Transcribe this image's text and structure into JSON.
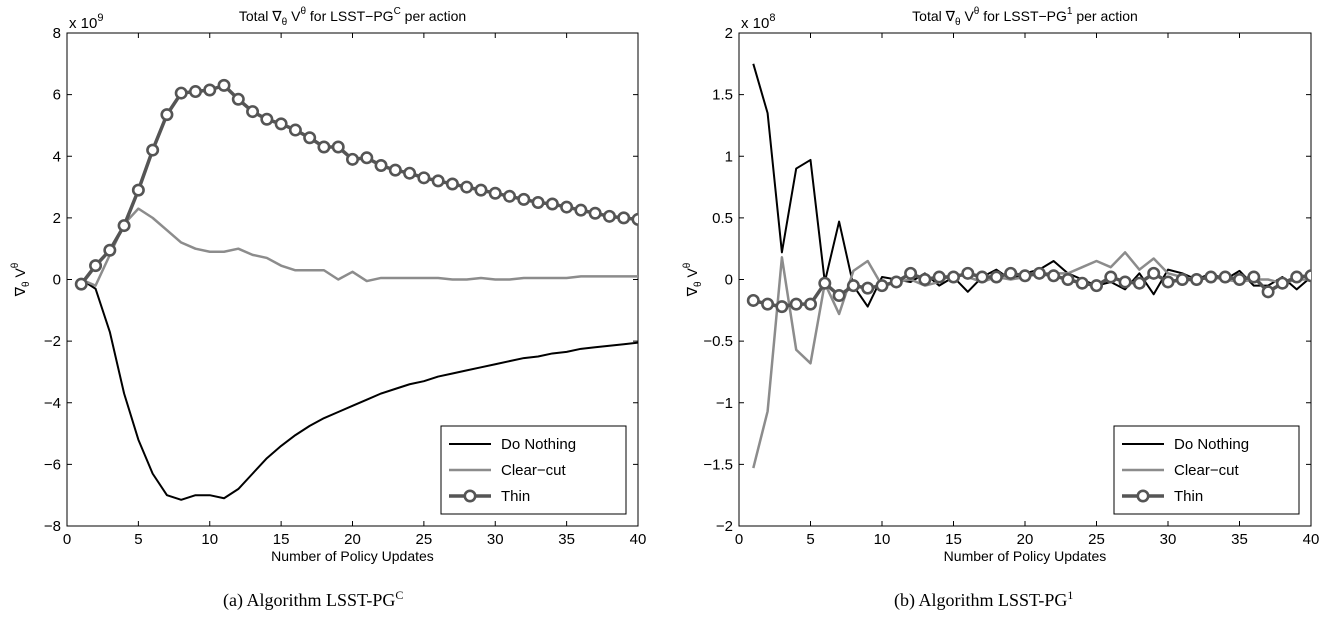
{
  "captions": [
    {
      "main": "(a) Algorithm LSST-PG",
      "sup": "C"
    },
    {
      "main": "(b) Algorithm LSST-PG",
      "sup": "1"
    }
  ],
  "chart_data": [
    {
      "type": "line",
      "title": {
        "pre": "Total ",
        "grad": "∇",
        "grad_sub": "θ",
        "v": " V",
        "v_sup": "θ",
        "mid": " for LSST−PG",
        "alg_sup": "C",
        "post": " per action"
      },
      "xlabel": "Number of Policy Updates",
      "ylabel": {
        "grad": "∇",
        "grad_sub": "θ",
        "v": " V",
        "v_sup": "θ"
      },
      "exponent": {
        "base": "x 10",
        "power": "9"
      },
      "xlim": [
        0,
        40
      ],
      "ylim": [
        -8,
        8
      ],
      "xticks": [
        "0",
        "5",
        "10",
        "15",
        "20",
        "25",
        "30",
        "35",
        "40"
      ],
      "yticks": [
        "−8",
        "−6",
        "−4",
        "−2",
        "0",
        "2",
        "4",
        "6",
        "8"
      ],
      "legend_position": "bottom-right",
      "x": [
        1,
        2,
        3,
        4,
        5,
        6,
        7,
        8,
        9,
        10,
        11,
        12,
        13,
        14,
        15,
        16,
        17,
        18,
        19,
        20,
        21,
        22,
        23,
        24,
        25,
        26,
        27,
        28,
        29,
        30,
        31,
        32,
        33,
        34,
        35,
        36,
        37,
        38,
        39,
        40
      ],
      "series": [
        {
          "name": "Do Nothing",
          "color": "#000000",
          "marker": "none",
          "values": [
            0,
            -0.3,
            -1.7,
            -3.7,
            -5.2,
            -6.3,
            -7.0,
            -7.15,
            -7.0,
            -7.0,
            -7.1,
            -6.8,
            -6.3,
            -5.8,
            -5.4,
            -5.05,
            -4.75,
            -4.5,
            -4.3,
            -4.1,
            -3.9,
            -3.7,
            -3.55,
            -3.4,
            -3.3,
            -3.15,
            -3.05,
            -2.95,
            -2.85,
            -2.75,
            -2.65,
            -2.55,
            -2.5,
            -2.4,
            -2.35,
            -2.25,
            -2.2,
            -2.15,
            -2.1,
            -2.05
          ]
        },
        {
          "name": "Clear−cut",
          "color": "#8c8c8c",
          "marker": "none",
          "values": [
            0,
            -0.2,
            0.8,
            1.8,
            2.3,
            2.0,
            1.6,
            1.2,
            1.0,
            0.9,
            0.9,
            1.0,
            0.8,
            0.7,
            0.45,
            0.3,
            0.3,
            0.3,
            0.0,
            0.25,
            -0.05,
            0.05,
            0.05,
            0.05,
            0.05,
            0.05,
            0.0,
            0.0,
            0.05,
            0.0,
            0.0,
            0.05,
            0.05,
            0.05,
            0.05,
            0.1,
            0.1,
            0.1,
            0.1,
            0.1
          ]
        },
        {
          "name": "Thin",
          "color": "#555555",
          "marker": "circle",
          "values": [
            -0.15,
            0.45,
            0.95,
            1.75,
            2.9,
            4.2,
            5.35,
            6.05,
            6.1,
            6.15,
            6.3,
            5.85,
            5.45,
            5.2,
            5.05,
            4.85,
            4.6,
            4.3,
            4.3,
            3.9,
            3.95,
            3.7,
            3.55,
            3.45,
            3.3,
            3.2,
            3.1,
            3.0,
            2.9,
            2.8,
            2.7,
            2.6,
            2.5,
            2.45,
            2.35,
            2.25,
            2.15,
            2.05,
            2.0,
            1.95
          ]
        }
      ]
    },
    {
      "type": "line",
      "title": {
        "pre": "Total ",
        "grad": "∇",
        "grad_sub": "θ",
        "v": " V",
        "v_sup": "θ",
        "mid": " for LSST−PG",
        "alg_sup": "1",
        "post": " per action"
      },
      "xlabel": "Number of Policy Updates",
      "ylabel": {
        "grad": "∇",
        "grad_sub": "θ",
        "v": " V",
        "v_sup": "θ"
      },
      "exponent": {
        "base": "x 10",
        "power": "8"
      },
      "xlim": [
        0,
        40
      ],
      "ylim": [
        -2,
        2
      ],
      "xticks": [
        "0",
        "5",
        "10",
        "15",
        "20",
        "25",
        "30",
        "35",
        "40"
      ],
      "yticks": [
        "−2",
        "−1.5",
        "−1",
        "−0.5",
        "0",
        "0.5",
        "1",
        "1.5",
        "2"
      ],
      "legend_position": "bottom-right",
      "x": [
        1,
        2,
        3,
        4,
        5,
        6,
        7,
        8,
        9,
        10,
        11,
        12,
        13,
        14,
        15,
        16,
        17,
        18,
        19,
        20,
        21,
        22,
        23,
        24,
        25,
        26,
        27,
        28,
        29,
        30,
        31,
        32,
        33,
        34,
        35,
        36,
        37,
        38,
        39,
        40
      ],
      "series": [
        {
          "name": "Do Nothing",
          "color": "#000000",
          "marker": "none",
          "values": [
            1.75,
            1.35,
            0.22,
            0.9,
            0.97,
            -0.02,
            0.47,
            -0.05,
            -0.22,
            0.02,
            0.0,
            -0.02,
            0.05,
            -0.05,
            0.02,
            -0.1,
            0.02,
            0.08,
            0.0,
            0.05,
            0.08,
            0.15,
            0.05,
            0.0,
            -0.05,
            -0.02,
            -0.08,
            0.05,
            -0.12,
            0.08,
            0.05,
            0.0,
            0.05,
            0.0,
            0.07,
            -0.05,
            -0.05,
            0.02,
            -0.08,
            0.02
          ]
        },
        {
          "name": "Clear−cut",
          "color": "#8c8c8c",
          "marker": "none",
          "values": [
            -1.53,
            -1.07,
            0.18,
            -0.57,
            -0.68,
            -0.03,
            -0.28,
            0.07,
            0.15,
            -0.05,
            -0.02,
            0.0,
            -0.05,
            -0.02,
            0.05,
            0.02,
            -0.02,
            0.02,
            0.0,
            0.02,
            0.05,
            0.05,
            0.05,
            0.1,
            0.15,
            0.1,
            0.22,
            0.08,
            0.17,
            0.05,
            0.02,
            0.0,
            0.02,
            0.0,
            -0.02,
            0.0,
            0.0,
            -0.03,
            0.0,
            0.0
          ]
        },
        {
          "name": "Thin",
          "color": "#555555",
          "marker": "circle",
          "values": [
            -0.17,
            -0.2,
            -0.22,
            -0.2,
            -0.2,
            -0.03,
            -0.13,
            -0.05,
            -0.07,
            -0.05,
            -0.02,
            0.05,
            0.0,
            0.02,
            0.02,
            0.05,
            0.02,
            0.02,
            0.05,
            0.03,
            0.05,
            0.03,
            0.0,
            -0.03,
            -0.05,
            0.02,
            -0.02,
            -0.03,
            0.05,
            -0.02,
            0.0,
            0.0,
            0.02,
            0.02,
            0.0,
            0.02,
            -0.1,
            -0.03,
            0.02,
            0.03
          ]
        }
      ]
    }
  ]
}
